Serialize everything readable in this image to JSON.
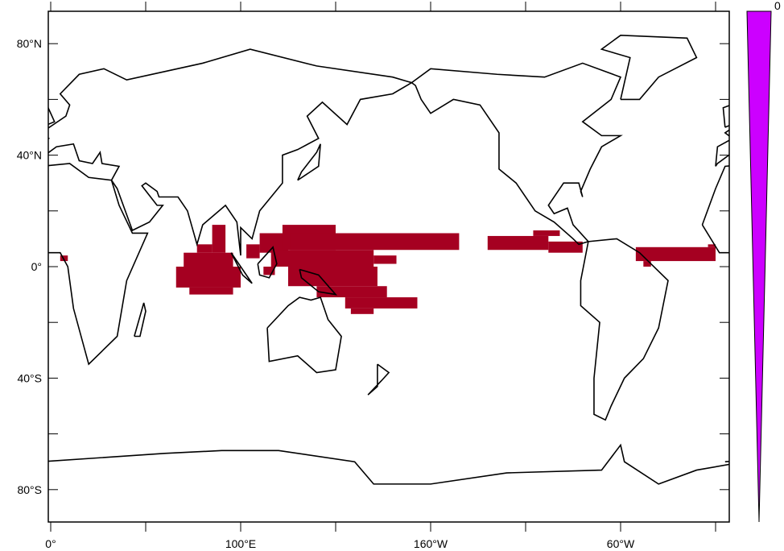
{
  "map": {
    "projection": "cylindrical equidistant",
    "lon_range": [
      -1,
      358
    ],
    "lat_range": [
      -90,
      90
    ],
    "lat_labels": [
      {
        "lat": 80,
        "text": "80°N"
      },
      {
        "lat": 40,
        "text": "40°N"
      },
      {
        "lat": 0,
        "text": "0°"
      },
      {
        "lat": -40,
        "text": "40°S"
      },
      {
        "lat": -80,
        "text": "80°S"
      }
    ],
    "lon_labels": [
      {
        "lon": 0,
        "text": "0°"
      },
      {
        "lon": 100,
        "text": "100°E"
      },
      {
        "lon": 200,
        "text": "160°W"
      },
      {
        "lon": 300,
        "text": "60°W"
      }
    ],
    "lat_ticks": [
      80,
      60,
      40,
      20,
      0,
      -20,
      -40,
      -60,
      -80
    ],
    "lon_ticks": [
      0,
      50,
      100,
      150,
      200,
      250,
      300,
      350
    ],
    "shade_color": "#a50021",
    "coastline_color": "#000000",
    "shaded_regions": [
      {
        "lon": [
          5,
          9
        ],
        "lat": [
          2,
          4
        ]
      },
      {
        "lon": [
          85,
          92
        ],
        "lat": [
          5,
          15
        ]
      },
      {
        "lon": [
          77,
          85
        ],
        "lat": [
          5,
          8
        ]
      },
      {
        "lon": [
          70,
          96
        ],
        "lat": [
          0,
          5
        ]
      },
      {
        "lon": [
          66,
          100
        ],
        "lat": [
          -7.5,
          0
        ]
      },
      {
        "lon": [
          73,
          96
        ],
        "lat": [
          -10,
          -7.5
        ]
      },
      {
        "lon": [
          103,
          110
        ],
        "lat": [
          3,
          8
        ]
      },
      {
        "lon": [
          110,
          125
        ],
        "lat": [
          5,
          12
        ]
      },
      {
        "lon": [
          122,
          150
        ],
        "lat": [
          6,
          15
        ]
      },
      {
        "lon": [
          126,
          215
        ],
        "lat": [
          6,
          12
        ]
      },
      {
        "lon": [
          116,
          170
        ],
        "lat": [
          0,
          6
        ]
      },
      {
        "lon": [
          170,
          182
        ],
        "lat": [
          1,
          4
        ]
      },
      {
        "lon": [
          112,
          118
        ],
        "lat": [
          -3,
          0
        ]
      },
      {
        "lon": [
          125,
          172
        ],
        "lat": [
          -7,
          0
        ]
      },
      {
        "lon": [
          140,
          177
        ],
        "lat": [
          -11,
          -7
        ]
      },
      {
        "lon": [
          155,
          193
        ],
        "lat": [
          -15,
          -11
        ]
      },
      {
        "lon": [
          158,
          170
        ],
        "lat": [
          -17,
          -15
        ]
      },
      {
        "lon": [
          230,
          262
        ],
        "lat": [
          6,
          11
        ]
      },
      {
        "lon": [
          254,
          268
        ],
        "lat": [
          11,
          13
        ]
      },
      {
        "lon": [
          262,
          280
        ],
        "lat": [
          5,
          9
        ]
      },
      {
        "lon": [
          308,
          350
        ],
        "lat": [
          2,
          7
        ]
      },
      {
        "lon": [
          346,
          350
        ],
        "lat": [
          7,
          8
        ]
      },
      {
        "lon": [
          312,
          316
        ],
        "lat": [
          0,
          2
        ]
      }
    ]
  },
  "colorbar": {
    "color": "#cc00ff",
    "label": "0"
  }
}
